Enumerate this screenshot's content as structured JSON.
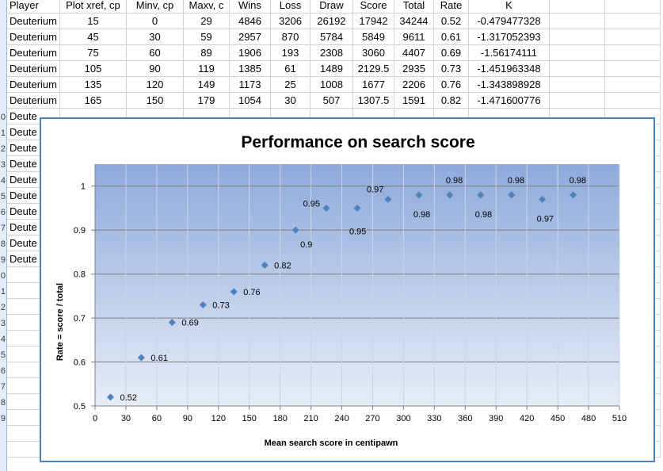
{
  "sheet": {
    "headers": [
      "Player",
      "Plot xref, cp",
      "Minv, cp",
      "Maxv, c",
      "Wins",
      "Loss",
      "Draw",
      "Score",
      "Total",
      "Rate",
      "K",
      "",
      ""
    ],
    "rows": [
      [
        "Deuterium",
        "15",
        "0",
        "29",
        "4846",
        "3206",
        "26192",
        "17942",
        "34244",
        "0.52",
        "-0.479477328"
      ],
      [
        "Deuterium",
        "45",
        "30",
        "59",
        "2957",
        "870",
        "5784",
        "5849",
        "9611",
        "0.61",
        "-1.317052393"
      ],
      [
        "Deuterium",
        "75",
        "60",
        "89",
        "1906",
        "193",
        "2308",
        "3060",
        "4407",
        "0.69",
        "-1.56174111"
      ],
      [
        "Deuterium",
        "105",
        "90",
        "119",
        "1385",
        "61",
        "1489",
        "2129.5",
        "2935",
        "0.73",
        "-1.451963348"
      ],
      [
        "Deuterium",
        "135",
        "120",
        "149",
        "1173",
        "25",
        "1008",
        "1677",
        "2206",
        "0.76",
        "-1.343898928"
      ],
      [
        "Deuterium",
        "165",
        "150",
        "179",
        "1054",
        "30",
        "507",
        "1307.5",
        "1591",
        "0.82",
        "-1.471600776"
      ]
    ],
    "partial_rows": [
      "Deute",
      "Deute",
      "Deute",
      "Deute",
      "Deute",
      "Deute",
      "Deute",
      "Deute",
      "Deute",
      "Deute"
    ],
    "row_numbers": [
      "",
      "",
      "",
      "",
      "",
      "",
      "",
      "0",
      "1",
      "2",
      "3",
      "4",
      "5",
      "6",
      "7",
      "8",
      "9",
      "0",
      "1",
      "2",
      "3",
      "4",
      "5",
      "6",
      "7",
      "8",
      "9"
    ]
  },
  "chart_data": {
    "type": "scatter",
    "title": "Performance on search score",
    "xlabel": "Mean search score in centipawn",
    "ylabel": "Rate = score / total",
    "xlim": [
      0,
      510
    ],
    "ylim": [
      0.5,
      1.05
    ],
    "xticks": [
      0,
      30,
      60,
      90,
      120,
      150,
      180,
      210,
      240,
      270,
      300,
      330,
      360,
      390,
      420,
      450,
      480,
      510
    ],
    "yticks": [
      0.5,
      0.6,
      0.7,
      0.8,
      0.9,
      1
    ],
    "ytick_labels": [
      "0.5",
      "0.6",
      "0.7",
      "0.8",
      "0.9",
      "1"
    ],
    "grid": true,
    "legend": "none",
    "marker_color": "#4f81bd",
    "points": [
      {
        "x": 15,
        "y": 0.52,
        "label": "0.52"
      },
      {
        "x": 45,
        "y": 0.61,
        "label": "0.61"
      },
      {
        "x": 75,
        "y": 0.69,
        "label": "0.69"
      },
      {
        "x": 105,
        "y": 0.73,
        "label": "0.73"
      },
      {
        "x": 135,
        "y": 0.76,
        "label": "0.76"
      },
      {
        "x": 165,
        "y": 0.82,
        "label": "0.82"
      },
      {
        "x": 195,
        "y": 0.9,
        "label": "0.9"
      },
      {
        "x": 225,
        "y": 0.95,
        "label": "0.95"
      },
      {
        "x": 255,
        "y": 0.95,
        "label": "0.95"
      },
      {
        "x": 285,
        "y": 0.97,
        "label": "0.97"
      },
      {
        "x": 315,
        "y": 0.98,
        "label": "0.98"
      },
      {
        "x": 345,
        "y": 0.98,
        "label": "0.98"
      },
      {
        "x": 375,
        "y": 0.98,
        "label": "0.98"
      },
      {
        "x": 405,
        "y": 0.98,
        "label": "0.98"
      },
      {
        "x": 435,
        "y": 0.97,
        "label": "0.97"
      },
      {
        "x": 465,
        "y": 0.98,
        "label": "0.98"
      }
    ]
  }
}
